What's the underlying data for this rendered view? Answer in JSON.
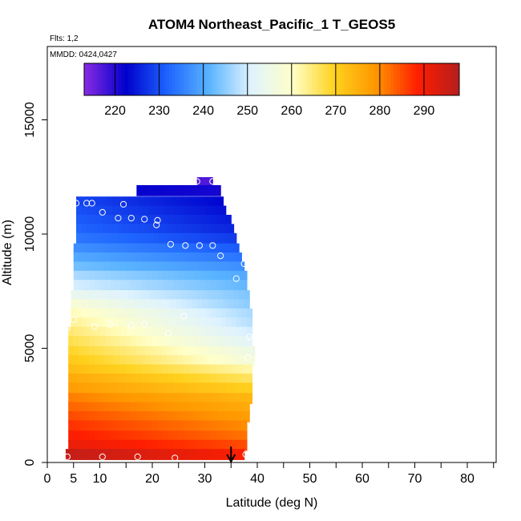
{
  "chart_data": {
    "type": "heatmap",
    "title": "ATOM4 Northeast_Pacific_1 T_GEOS5",
    "annotations": {
      "flights": "Flts: 1,2",
      "dates": "MMDD: 0424,0427"
    },
    "xlabel": "Latitude (deg N)",
    "ylabel": "Altitude (m)",
    "xlim": [
      0,
      85
    ],
    "ylim": [
      0,
      17500
    ],
    "x_ticks": [
      "0",
      "5",
      "10",
      "20",
      "30",
      "40",
      "50",
      "60",
      "70",
      "80"
    ],
    "x_tick_values": [
      0,
      5,
      10,
      20,
      30,
      40,
      50,
      60,
      70,
      80
    ],
    "x_minor_ticks": [
      15,
      25,
      35,
      45,
      55,
      65,
      75,
      85
    ],
    "y_ticks": [
      "0",
      "5000",
      "10000",
      "15000"
    ],
    "y_tick_values": [
      0,
      5000,
      10000,
      15000
    ],
    "colorbar": {
      "range": [
        213,
        298
      ],
      "ticks": [
        "220",
        "230",
        "240",
        "250",
        "260",
        "270",
        "280",
        "290"
      ],
      "tick_values": [
        220,
        230,
        240,
        250,
        260,
        270,
        280,
        290
      ],
      "colors": [
        "#8a2be2",
        "#0000cd",
        "#1e64ff",
        "#5ab4ff",
        "#dff3ff",
        "#ffffc8",
        "#ffd21e",
        "#ff9600",
        "#ff1e00",
        "#b41e1e"
      ]
    },
    "layers": [
      {
        "alt": 12250,
        "lat_min": 28.5,
        "lat_max": 31.5,
        "t_left": 217,
        "t_right": 217
      },
      {
        "alt": 11900,
        "lat_min": 17,
        "lat_max": 33,
        "t_left": 222,
        "t_right": 221
      },
      {
        "alt": 11400,
        "lat_min": 5.5,
        "lat_max": 33.5,
        "t_left": 229,
        "t_right": 223
      },
      {
        "alt": 11000,
        "lat_min": 5.5,
        "lat_max": 34,
        "t_left": 230,
        "t_right": 224
      },
      {
        "alt": 10600,
        "lat_min": 5.5,
        "lat_max": 35,
        "t_left": 231,
        "t_right": 225
      },
      {
        "alt": 10200,
        "lat_min": 5.5,
        "lat_max": 35.5,
        "t_left": 232,
        "t_right": 226
      },
      {
        "alt": 9800,
        "lat_min": 5.5,
        "lat_max": 36,
        "t_left": 234,
        "t_right": 228
      },
      {
        "alt": 9350,
        "lat_min": 5,
        "lat_max": 36.5,
        "t_left": 237,
        "t_right": 231
      },
      {
        "alt": 8950,
        "lat_min": 5,
        "lat_max": 37,
        "t_left": 240,
        "t_right": 234
      },
      {
        "alt": 8550,
        "lat_min": 5,
        "lat_max": 37.5,
        "t_left": 243,
        "t_right": 237
      },
      {
        "alt": 8150,
        "lat_min": 5,
        "lat_max": 38,
        "t_left": 247,
        "t_right": 240
      },
      {
        "alt": 7750,
        "lat_min": 5,
        "lat_max": 38,
        "t_left": 250,
        "t_right": 242
      },
      {
        "alt": 7300,
        "lat_min": 4.5,
        "lat_max": 38.5,
        "t_left": 254,
        "t_right": 244
      },
      {
        "alt": 6900,
        "lat_min": 4.5,
        "lat_max": 38.5,
        "t_left": 258,
        "t_right": 245
      },
      {
        "alt": 6500,
        "lat_min": 4.5,
        "lat_max": 39,
        "t_left": 261,
        "t_right": 247
      },
      {
        "alt": 6100,
        "lat_min": 4.5,
        "lat_max": 39,
        "t_left": 263,
        "t_right": 248
      },
      {
        "alt": 5700,
        "lat_min": 4,
        "lat_max": 39,
        "t_left": 265,
        "t_right": 250
      },
      {
        "alt": 5300,
        "lat_min": 4,
        "lat_max": 39,
        "t_left": 267,
        "t_right": 252
      },
      {
        "alt": 4850,
        "lat_min": 4,
        "lat_max": 39.5,
        "t_left": 269,
        "t_right": 255
      },
      {
        "alt": 4450,
        "lat_min": 4,
        "lat_max": 39.5,
        "t_left": 271,
        "t_right": 257
      },
      {
        "alt": 4050,
        "lat_min": 4,
        "lat_max": 39,
        "t_left": 273,
        "t_right": 262
      },
      {
        "alt": 3650,
        "lat_min": 4,
        "lat_max": 39,
        "t_left": 276,
        "t_right": 266
      },
      {
        "alt": 3250,
        "lat_min": 4,
        "lat_max": 39,
        "t_left": 278,
        "t_right": 270
      },
      {
        "alt": 2800,
        "lat_min": 4,
        "lat_max": 39,
        "t_left": 281,
        "t_right": 274
      },
      {
        "alt": 2400,
        "lat_min": 4,
        "lat_max": 38.5,
        "t_left": 283,
        "t_right": 276
      },
      {
        "alt": 2000,
        "lat_min": 4,
        "lat_max": 38.5,
        "t_left": 285,
        "t_right": 278
      },
      {
        "alt": 1600,
        "lat_min": 4,
        "lat_max": 38,
        "t_left": 287,
        "t_right": 280
      },
      {
        "alt": 1150,
        "lat_min": 4,
        "lat_max": 38,
        "t_left": 289,
        "t_right": 282
      },
      {
        "alt": 750,
        "lat_min": 4,
        "lat_max": 38,
        "t_left": 291,
        "t_right": 285
      },
      {
        "alt": 350,
        "lat_min": 3.5,
        "lat_max": 37.5,
        "t_left": 296,
        "t_right": 289
      }
    ],
    "points": [
      {
        "lat": 28.5,
        "alt": 12300
      },
      {
        "lat": 31.5,
        "alt": 12300
      },
      {
        "lat": 5.5,
        "alt": 11350
      },
      {
        "lat": 7.5,
        "alt": 11350
      },
      {
        "lat": 8.5,
        "alt": 11350
      },
      {
        "lat": 14.5,
        "alt": 11300
      },
      {
        "lat": 10.5,
        "alt": 10950
      },
      {
        "lat": 13.5,
        "alt": 10700
      },
      {
        "lat": 16,
        "alt": 10700
      },
      {
        "lat": 18.5,
        "alt": 10650
      },
      {
        "lat": 21,
        "alt": 10600
      },
      {
        "lat": 20.8,
        "alt": 10400
      },
      {
        "lat": 23.5,
        "alt": 9550
      },
      {
        "lat": 26.3,
        "alt": 9500
      },
      {
        "lat": 29,
        "alt": 9500
      },
      {
        "lat": 31.5,
        "alt": 9500
      },
      {
        "lat": 33,
        "alt": 9050
      },
      {
        "lat": 37.5,
        "alt": 8700
      },
      {
        "lat": 39,
        "alt": 8450
      },
      {
        "lat": 36,
        "alt": 8050
      },
      {
        "lat": 26,
        "alt": 6400
      },
      {
        "lat": 5,
        "alt": 6250
      },
      {
        "lat": 18.5,
        "alt": 6050
      },
      {
        "lat": 12,
        "alt": 6050
      },
      {
        "lat": 16,
        "alt": 6000
      },
      {
        "lat": 9,
        "alt": 5950
      },
      {
        "lat": 3.8,
        "alt": 5900
      },
      {
        "lat": 23,
        "alt": 5650
      },
      {
        "lat": 38.5,
        "alt": 5500
      },
      {
        "lat": 38.2,
        "alt": 4600
      },
      {
        "lat": 39.8,
        "alt": 4300
      },
      {
        "lat": 3.8,
        "alt": 250
      },
      {
        "lat": 10.5,
        "alt": 250
      },
      {
        "lat": 17.2,
        "alt": 250
      },
      {
        "lat": 24.3,
        "alt": 200
      },
      {
        "lat": 37.8,
        "alt": 350
      }
    ],
    "arrow": {
      "lat": 35,
      "alt_top": 700,
      "alt_bottom": 0
    },
    "grid": false,
    "legend": "top (colorbar inside plot)"
  }
}
